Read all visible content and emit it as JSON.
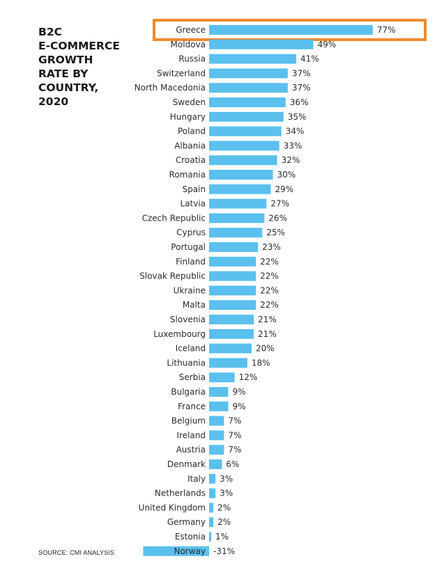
{
  "title_lines": [
    "B2C",
    "E-COMMERCE",
    "GROWTH",
    "RATE BY",
    "COUNTRY,",
    "2020"
  ],
  "source": "SOURCE: CMI ANALYSIS",
  "colors": {
    "bar": "#5bc0ee",
    "highlight": "#f08a2c",
    "text": "#2b2b2b"
  },
  "chart_data": {
    "type": "bar",
    "orientation": "horizontal",
    "title": "B2C E-COMMERCE GROWTH RATE BY COUNTRY, 2020",
    "highlighted_category": "Greece",
    "categories": [
      "Greece",
      "Moldova",
      "Russia",
      "Switzerland",
      "North Macedonia",
      "Sweden",
      "Hungary",
      "Poland",
      "Albania",
      "Croatia",
      "Romania",
      "Spain",
      "Latvia",
      "Czech Republic",
      "Cyprus",
      "Portugal",
      "Finland",
      "Slovak Republic",
      "Ukraine",
      "Malta",
      "Slovenia",
      "Luxembourg",
      "Iceland",
      "Lithuania",
      "Serbia",
      "Bulgaria",
      "France",
      "Belgium",
      "Ireland",
      "Austria",
      "Denmark",
      "Italy",
      "Netherlands",
      "United Kingdom",
      "Germany",
      "Estonia",
      "Norway"
    ],
    "values": [
      77,
      49,
      41,
      37,
      37,
      36,
      35,
      34,
      33,
      32,
      30,
      29,
      27,
      26,
      25,
      23,
      22,
      22,
      22,
      22,
      21,
      21,
      20,
      18,
      12,
      9,
      9,
      7,
      7,
      7,
      6,
      3,
      3,
      2,
      2,
      1,
      -31
    ],
    "labels": [
      "77%",
      "49%",
      "41%",
      "37%",
      "37%",
      "36%",
      "35%",
      "34%",
      "33%",
      "32%",
      "30%",
      "29%",
      "27%",
      "26%",
      "25%",
      "23%",
      "22%",
      "22%",
      "22%",
      "22%",
      "21%",
      "21%",
      "20%",
      "18%",
      "12%",
      "9%",
      "9%",
      "7%",
      "7%",
      "7%",
      "6%",
      "3%",
      "3%",
      "2%",
      "2%",
      "1%",
      "-31%"
    ],
    "unit": "%",
    "xlabel": "",
    "ylabel": ""
  }
}
